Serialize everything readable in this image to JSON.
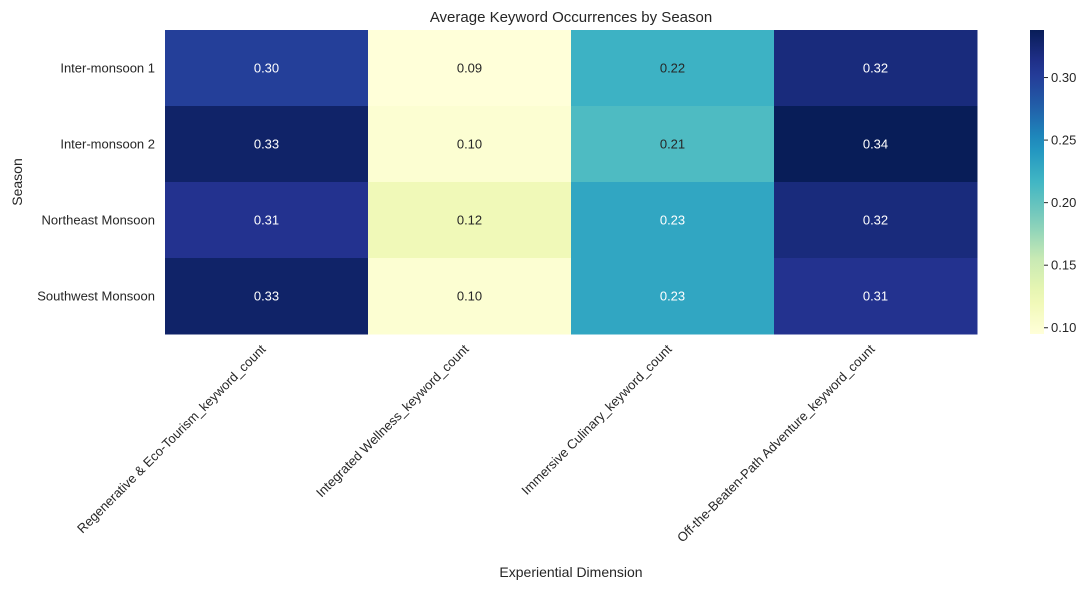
{
  "chart_data": {
    "type": "heatmap",
    "title": "Average Keyword Occurrences by Season",
    "xlabel": "Experiential Dimension",
    "ylabel": "Season",
    "columns": [
      "Regenerative & Eco-Tourism_keyword_count",
      "Integrated Wellness_keyword_count",
      "Immersive Culinary_keyword_count",
      "Off-the-Beaten-Path Adventure_keyword_count"
    ],
    "rows": [
      "Inter-monsoon 1",
      "Inter-monsoon 2",
      "Northeast Monsoon",
      "Southwest Monsoon"
    ],
    "values": [
      [
        0.3,
        0.09,
        0.22,
        0.32
      ],
      [
        0.33,
        0.1,
        0.21,
        0.34
      ],
      [
        0.31,
        0.12,
        0.23,
        0.32
      ],
      [
        0.33,
        0.1,
        0.23,
        0.31
      ]
    ],
    "colormap": "YlGnBu",
    "vmin": 0.095,
    "vmax": 0.338,
    "colorbar_ticks": [
      0.1,
      0.15,
      0.2,
      0.25,
      0.3
    ],
    "value_format": "2 decimals"
  }
}
